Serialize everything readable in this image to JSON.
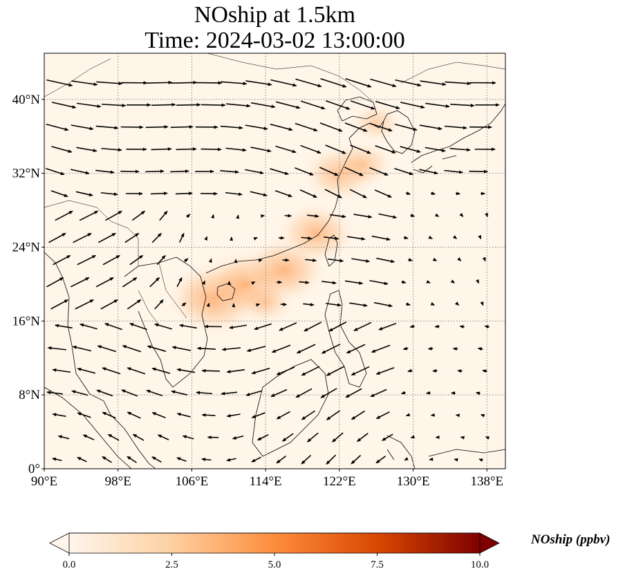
{
  "title_line1": "NOship at 1.5km",
  "title_line2": "Time: 2024-03-02 13:00:00",
  "map": {
    "lon_range": [
      90,
      140
    ],
    "lat_range": [
      0,
      45
    ],
    "lon_ticks": [
      {
        "value": 90,
        "label": "90°E"
      },
      {
        "value": 98,
        "label": "98°E"
      },
      {
        "value": 106,
        "label": "106°E"
      },
      {
        "value": 114,
        "label": "114°E"
      },
      {
        "value": 122,
        "label": "122°E"
      },
      {
        "value": 130,
        "label": "130°E"
      },
      {
        "value": 138,
        "label": "138°E"
      }
    ],
    "lat_ticks": [
      {
        "value": 0,
        "label": "0°"
      },
      {
        "value": 8,
        "label": "8°N"
      },
      {
        "value": 16,
        "label": "16°N"
      },
      {
        "value": 24,
        "label": "24°N"
      },
      {
        "value": 32,
        "label": "32°N"
      },
      {
        "value": 40,
        "label": "40°N"
      }
    ],
    "gridlines": true,
    "background_color": "#fff5e8"
  },
  "colorbar": {
    "label": "NOship (ppbv)",
    "range": [
      0,
      10
    ],
    "ticks": [
      {
        "value": 0,
        "label": "0.0"
      },
      {
        "value": 2.5,
        "label": "2.5"
      },
      {
        "value": 5,
        "label": "5.0"
      },
      {
        "value": 7.5,
        "label": "7.5"
      },
      {
        "value": 10,
        "label": "10.0"
      }
    ],
    "colormap": [
      "#fff5eb",
      "#fdd0a2",
      "#fd8d3c",
      "#d94801",
      "#7f0000"
    ]
  },
  "concentration_spots": [
    {
      "lon": 108.5,
      "lat": 18.5,
      "value": 2.6
    },
    {
      "lon": 112,
      "lat": 20,
      "value": 2.3
    },
    {
      "lon": 116,
      "lat": 21.5,
      "value": 2.2
    },
    {
      "lon": 119.5,
      "lat": 25.5,
      "value": 1.9
    },
    {
      "lon": 122,
      "lat": 32,
      "value": 1.7
    },
    {
      "lon": 124.5,
      "lat": 33,
      "value": 1.2
    },
    {
      "lon": 114,
      "lat": 18,
      "value": 1.0
    },
    {
      "lon": 126,
      "lat": 37.5,
      "value": 0.8
    }
  ]
}
